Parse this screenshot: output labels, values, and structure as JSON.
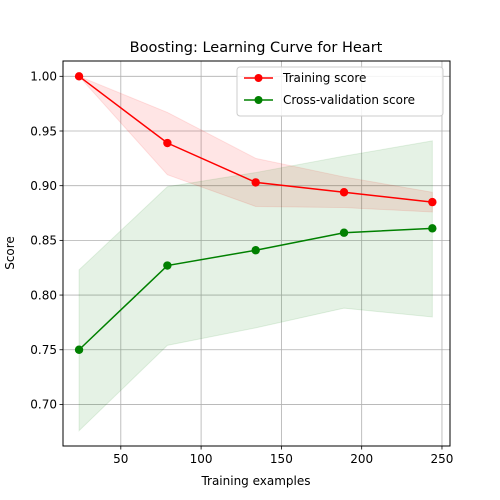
{
  "chart_data": {
    "type": "line",
    "title": "Boosting: Learning Curve for Heart",
    "xlabel": "Training examples",
    "ylabel": "Score",
    "xlim": [
      14,
      255
    ],
    "ylim": [
      0.662,
      1.014
    ],
    "xticks": [
      50,
      100,
      150,
      200,
      250
    ],
    "yticks": [
      0.7,
      0.75,
      0.8,
      0.85,
      0.9,
      0.95,
      1.0
    ],
    "grid": true,
    "legend_position": "top-right",
    "x": [
      24,
      79,
      134,
      189,
      244
    ],
    "series": [
      {
        "name": "Training score",
        "color": "#ff0000",
        "values": [
          1.0,
          0.939,
          0.903,
          0.894,
          0.885
        ],
        "band_low": [
          1.0,
          0.91,
          0.881,
          0.88,
          0.876
        ],
        "band_high": [
          1.0,
          0.967,
          0.925,
          0.908,
          0.894
        ]
      },
      {
        "name": "Cross-validation score",
        "color": "#008000",
        "values": [
          0.75,
          0.827,
          0.841,
          0.857,
          0.861
        ],
        "band_low": [
          0.676,
          0.754,
          0.77,
          0.788,
          0.78
        ],
        "band_high": [
          0.823,
          0.899,
          0.912,
          0.927,
          0.941
        ]
      }
    ]
  }
}
